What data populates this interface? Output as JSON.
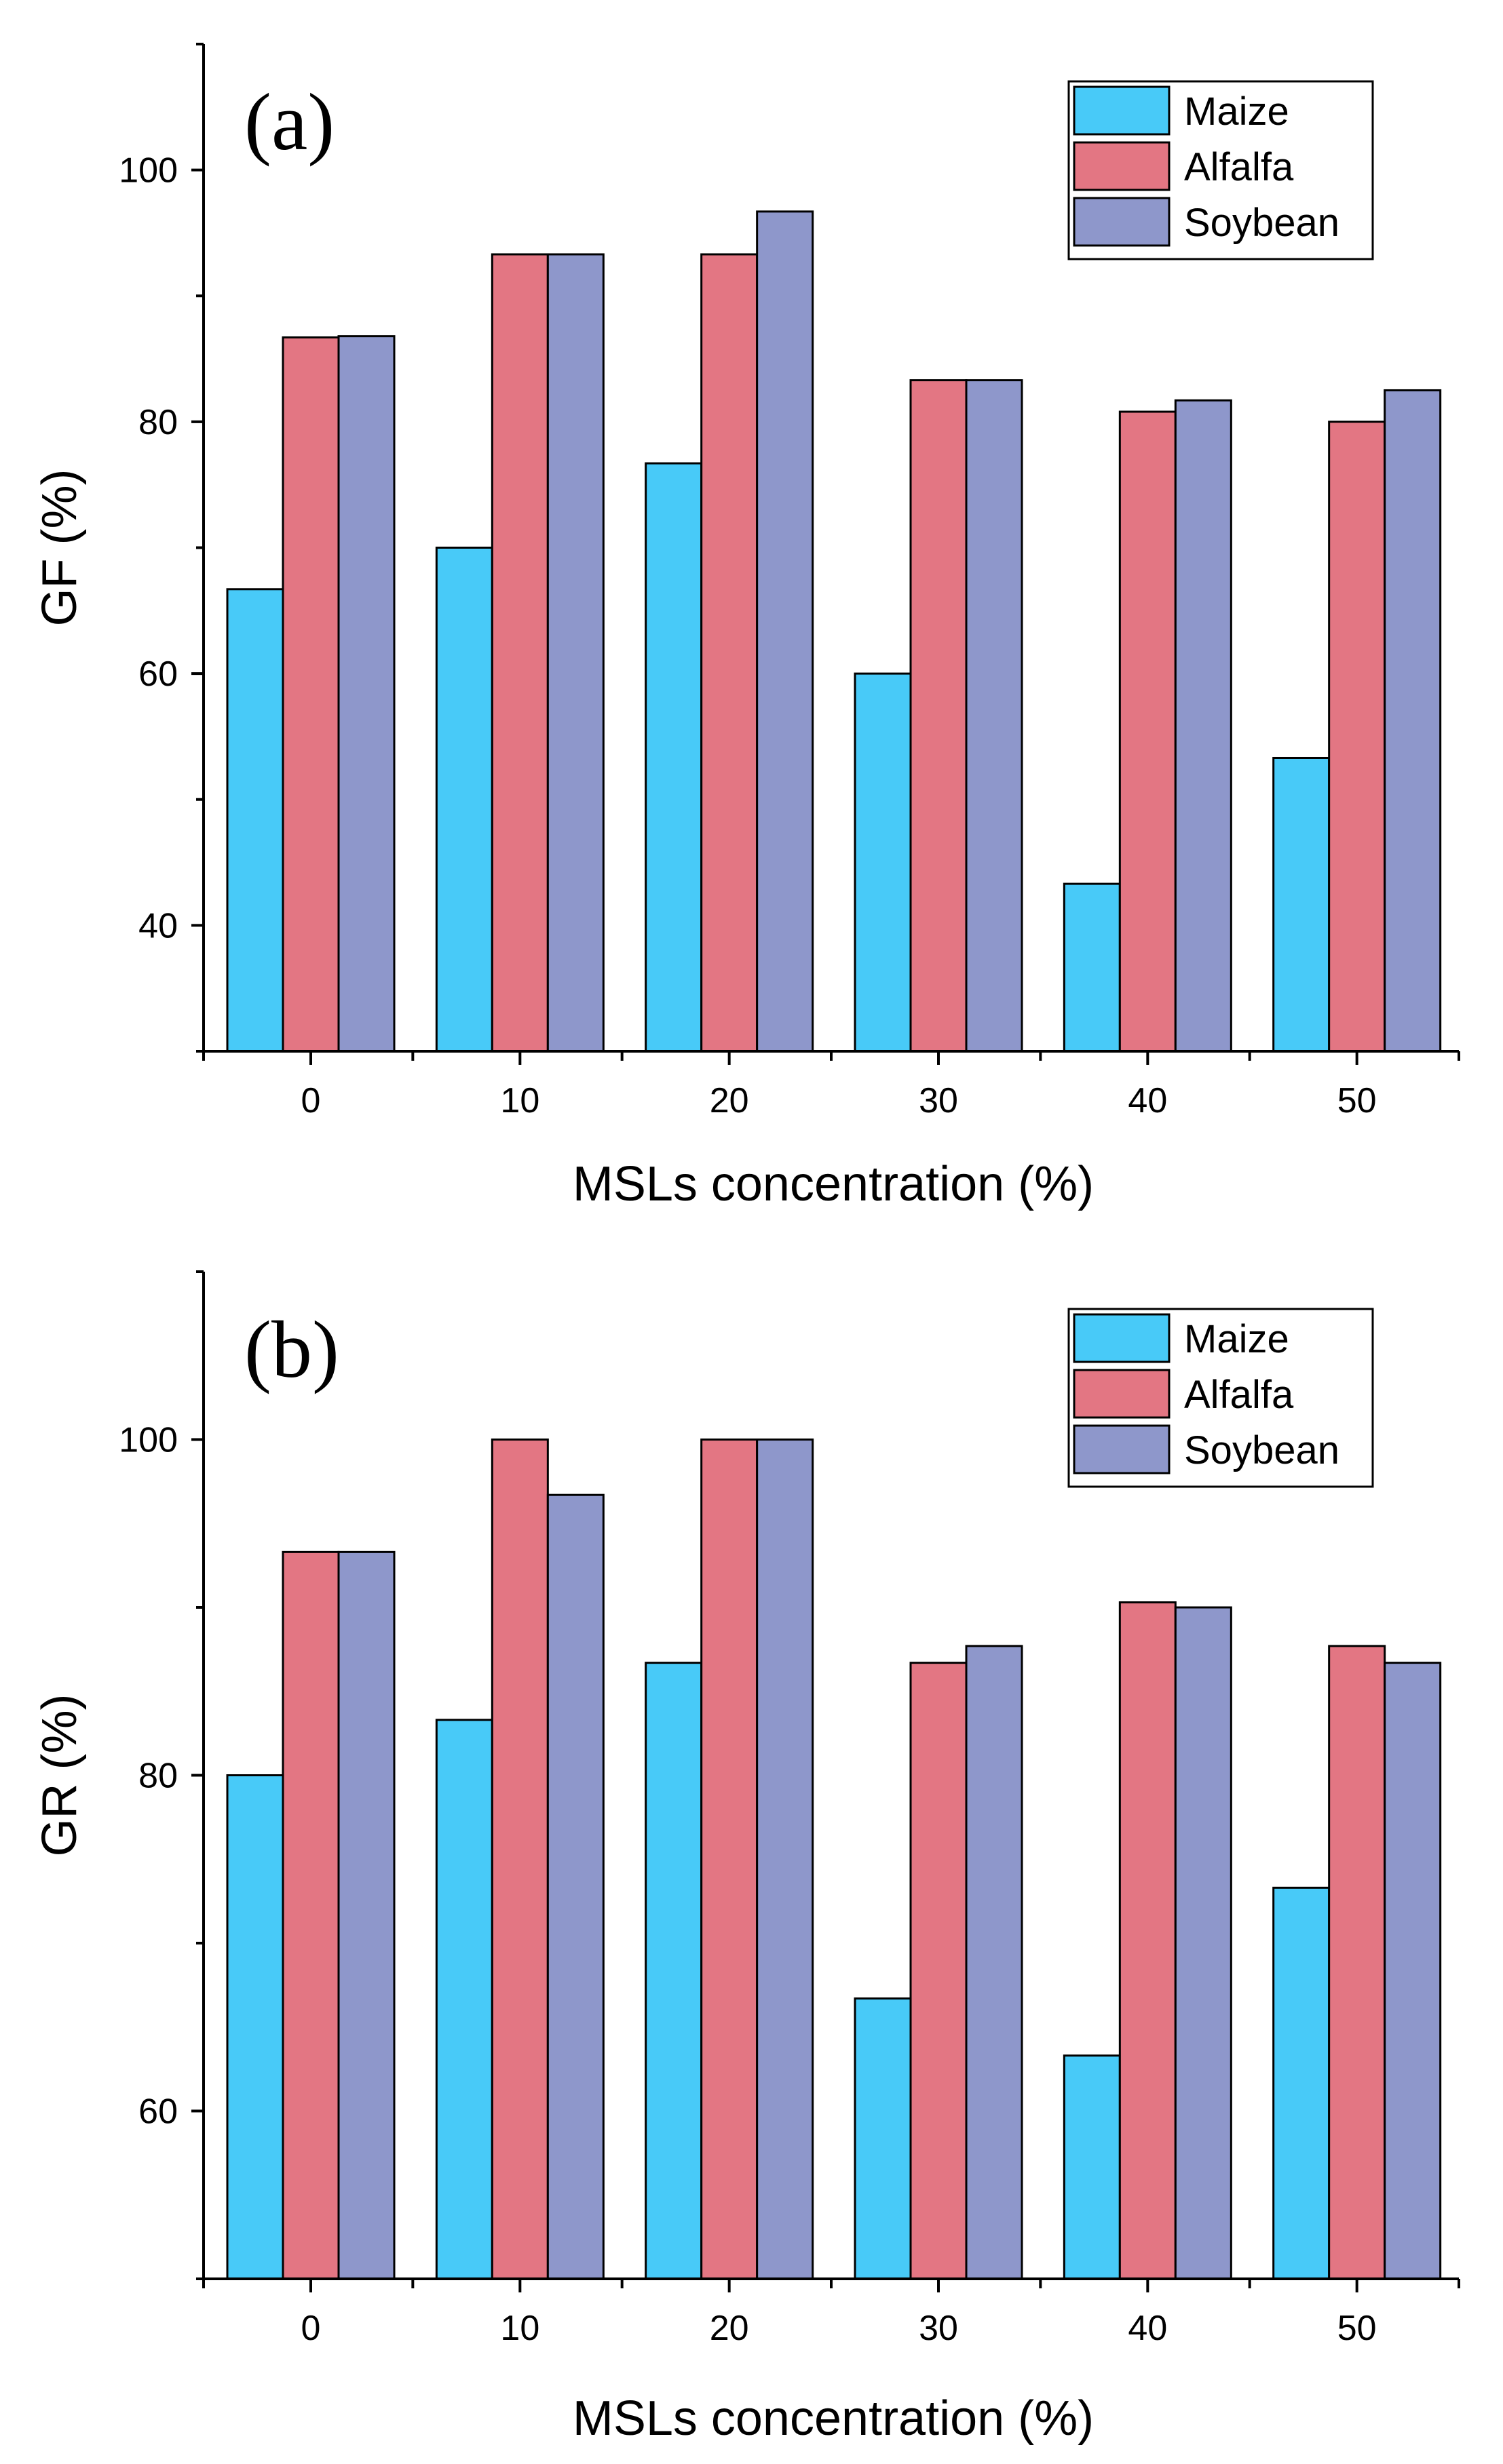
{
  "chart_data": [
    {
      "type": "bar",
      "panel_label": "(a)",
      "title": "",
      "xlabel": "MSLs concentration (%)",
      "ylabel": "GF (%)",
      "categories": [
        "0",
        "10",
        "20",
        "30",
        "40",
        "50"
      ],
      "ylim": [
        30,
        110
      ],
      "yticks": [
        40,
        60,
        80,
        100
      ],
      "legend_position": "top-right",
      "series": [
        {
          "name": "Maize",
          "color": "#48CAF8",
          "values": [
            66.7,
            70.0,
            76.7,
            60.0,
            43.3,
            53.3
          ]
        },
        {
          "name": "Alfalfa",
          "color": "#E37683",
          "values": [
            86.7,
            93.3,
            93.3,
            83.3,
            80.8,
            80.0
          ]
        },
        {
          "name": "Soybean",
          "color": "#8E97CB",
          "values": [
            86.8,
            93.3,
            96.7,
            83.3,
            81.7,
            82.5
          ]
        }
      ]
    },
    {
      "type": "bar",
      "panel_label": "(b)",
      "title": "",
      "xlabel": "MSLs concentration (%)",
      "ylabel": "GR (%)",
      "categories": [
        "0",
        "10",
        "20",
        "30",
        "40",
        "50"
      ],
      "ylim": [
        50,
        110
      ],
      "yticks": [
        60,
        80,
        100
      ],
      "legend_position": "top-right",
      "series": [
        {
          "name": "Maize",
          "color": "#48CAF8",
          "values": [
            80.0,
            83.3,
            86.7,
            66.7,
            63.3,
            73.3
          ]
        },
        {
          "name": "Alfalfa",
          "color": "#E37683",
          "values": [
            93.3,
            100.0,
            100.0,
            86.7,
            90.3,
            87.7
          ]
        },
        {
          "name": "Soybean",
          "color": "#8E97CB",
          "values": [
            93.3,
            96.7,
            100.0,
            87.7,
            90.0,
            86.7
          ]
        }
      ]
    }
  ]
}
